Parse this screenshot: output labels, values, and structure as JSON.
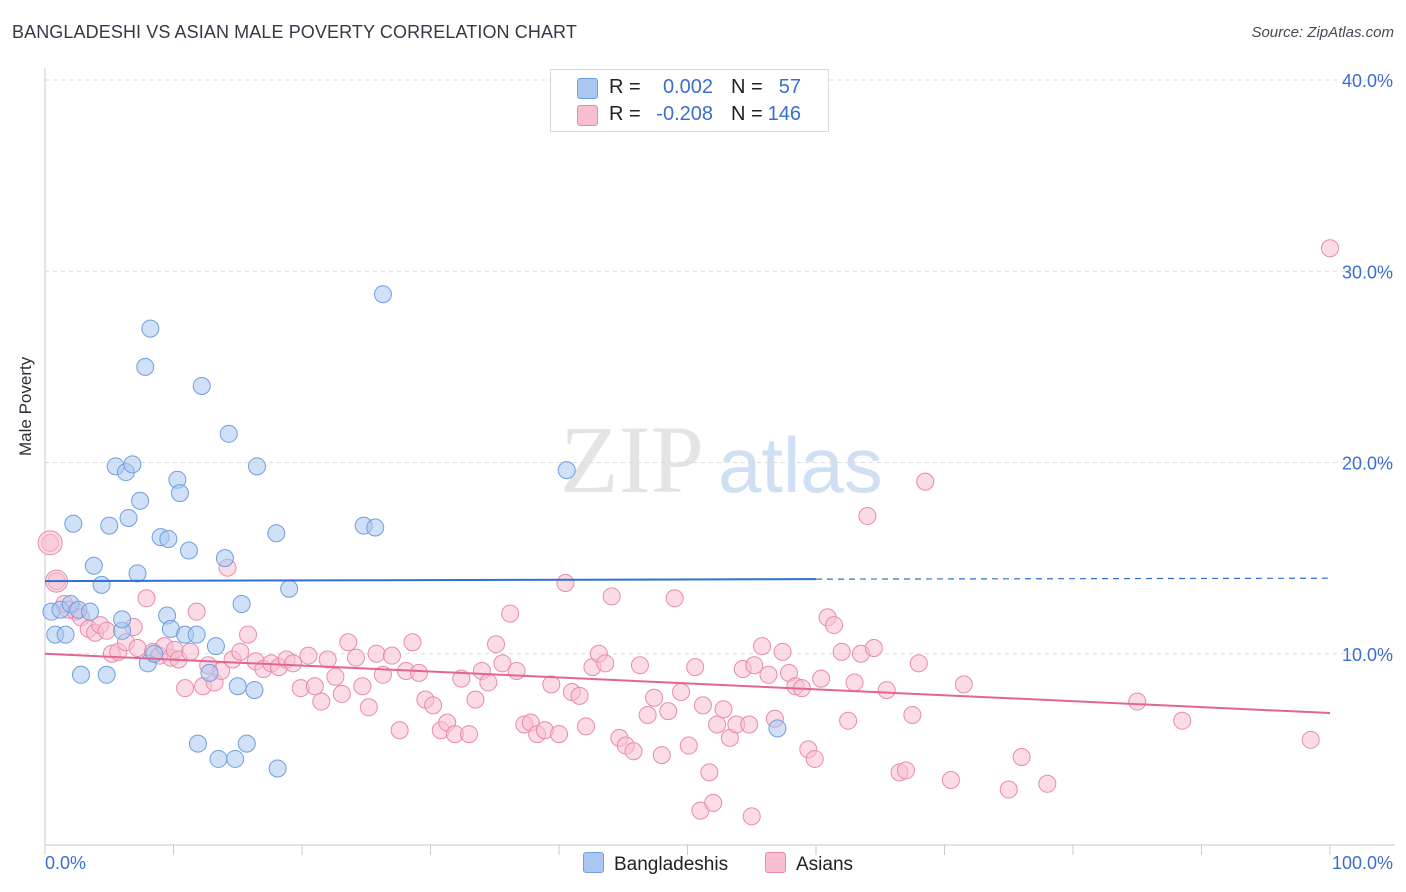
{
  "title": "BANGLADESHI VS ASIAN MALE POVERTY CORRELATION CHART",
  "source": "Source: ZipAtlas.com",
  "watermark": {
    "zip": "ZIP",
    "atlas": "atlas"
  },
  "colors": {
    "blue_fill": "#a9c7f0",
    "blue_stroke": "#6f9fe0",
    "blue_line": "#2e6fd1",
    "pink_fill": "#f7bfd1",
    "pink_stroke": "#e98aab",
    "pink_line": "#e2658f",
    "axis_text": "#3a6fd0"
  },
  "legend": {
    "rows": [
      {
        "r_label": "R =",
        "r_value": "0.002",
        "n_label": "N =",
        "n_value": "57",
        "color": "#a9c7f0",
        "stroke": "#6f9fe0"
      },
      {
        "r_label": "R =",
        "r_value": "-0.208",
        "n_label": "N =",
        "n_value": "146",
        "color": "#f7bfd1",
        "stroke": "#e98aab"
      }
    ]
  },
  "bottom_legend": [
    {
      "label": "Bangladeshis",
      "color": "#a9c7f0",
      "stroke": "#6f9fe0"
    },
    {
      "label": "Asians",
      "color": "#f7bfd1",
      "stroke": "#e98aab"
    }
  ],
  "chart_data": {
    "type": "scatter",
    "title": "BANGLADESHI VS ASIAN MALE POVERTY CORRELATION CHART",
    "xlabel": "",
    "ylabel": "Male Poverty",
    "xlim": [
      0,
      100
    ],
    "ylim": [
      0,
      40
    ],
    "x_tick_labels": [
      "0.0%",
      "100.0%"
    ],
    "y_ticks": [
      10,
      20,
      30,
      40
    ],
    "y_tick_labels": [
      "10.0%",
      "20.0%",
      "30.0%",
      "40.0%"
    ],
    "grid": "horizontal dashed",
    "legend_position": "top-center",
    "series": [
      {
        "name": "Bangladeshis",
        "r": 0.002,
        "n": 57,
        "trend": {
          "x0": 0,
          "y0": 13.8,
          "x1": 60,
          "y1": 13.9,
          "dashed_to_x": 100,
          "dashed_y1": 13.95
        },
        "points": [
          [
            0.5,
            12.2
          ],
          [
            0.8,
            11.0
          ],
          [
            1.2,
            12.3
          ],
          [
            1.6,
            11.0
          ],
          [
            2.0,
            12.6
          ],
          [
            2.2,
            16.8
          ],
          [
            2.6,
            12.3
          ],
          [
            2.8,
            8.9
          ],
          [
            3.5,
            12.2
          ],
          [
            3.8,
            14.6
          ],
          [
            4.4,
            13.6
          ],
          [
            4.8,
            8.9
          ],
          [
            5.0,
            16.7
          ],
          [
            5.5,
            19.8
          ],
          [
            6.0,
            11.2
          ],
          [
            6.0,
            11.8
          ],
          [
            6.3,
            19.5
          ],
          [
            6.5,
            17.1
          ],
          [
            6.8,
            19.9
          ],
          [
            7.2,
            14.2
          ],
          [
            7.4,
            18.0
          ],
          [
            7.8,
            25.0
          ],
          [
            8.0,
            9.5
          ],
          [
            8.2,
            27.0
          ],
          [
            8.5,
            10.0
          ],
          [
            9.0,
            16.1
          ],
          [
            9.5,
            12.0
          ],
          [
            9.6,
            16.0
          ],
          [
            9.8,
            11.3
          ],
          [
            10.3,
            19.1
          ],
          [
            10.5,
            18.4
          ],
          [
            10.9,
            11.0
          ],
          [
            11.2,
            15.4
          ],
          [
            11.8,
            11.0
          ],
          [
            11.9,
            5.3
          ],
          [
            12.2,
            24.0
          ],
          [
            12.8,
            9.0
          ],
          [
            13.3,
            10.4
          ],
          [
            13.5,
            4.5
          ],
          [
            14.0,
            15.0
          ],
          [
            14.3,
            21.5
          ],
          [
            14.8,
            4.5
          ],
          [
            15.0,
            8.3
          ],
          [
            15.3,
            12.6
          ],
          [
            15.7,
            5.3
          ],
          [
            16.3,
            8.1
          ],
          [
            16.5,
            19.8
          ],
          [
            18.0,
            16.3
          ],
          [
            18.1,
            4.0
          ],
          [
            19.0,
            13.4
          ],
          [
            24.8,
            16.7
          ],
          [
            25.7,
            16.6
          ],
          [
            26.3,
            28.8
          ],
          [
            40.6,
            19.6
          ],
          [
            57.0,
            6.1
          ]
        ]
      },
      {
        "name": "Asians",
        "r": -0.208,
        "n": 146,
        "trend": {
          "x0": 0,
          "y0": 10.0,
          "x1": 100,
          "y1": 6.9
        },
        "points": [
          [
            0.4,
            15.8
          ],
          [
            0.9,
            13.8
          ],
          [
            1.5,
            12.6
          ],
          [
            1.8,
            12.3
          ],
          [
            2.4,
            12.2
          ],
          [
            2.8,
            11.9
          ],
          [
            3.4,
            11.3
          ],
          [
            3.9,
            11.1
          ],
          [
            4.3,
            11.5
          ],
          [
            4.8,
            11.2
          ],
          [
            5.2,
            10.0
          ],
          [
            5.7,
            10.1
          ],
          [
            6.3,
            10.6
          ],
          [
            6.9,
            11.4
          ],
          [
            7.2,
            10.3
          ],
          [
            7.9,
            12.9
          ],
          [
            8.4,
            10.1
          ],
          [
            8.9,
            9.9
          ],
          [
            9.3,
            10.4
          ],
          [
            9.8,
            9.8
          ],
          [
            10.1,
            10.2
          ],
          [
            10.4,
            9.7
          ],
          [
            10.9,
            8.2
          ],
          [
            11.3,
            10.1
          ],
          [
            11.8,
            12.2
          ],
          [
            12.3,
            8.3
          ],
          [
            12.7,
            9.4
          ],
          [
            13.2,
            8.5
          ],
          [
            13.7,
            9.1
          ],
          [
            14.2,
            14.5
          ],
          [
            14.6,
            9.7
          ],
          [
            15.2,
            10.1
          ],
          [
            15.8,
            11.0
          ],
          [
            16.4,
            9.6
          ],
          [
            17.0,
            9.2
          ],
          [
            17.6,
            9.5
          ],
          [
            18.2,
            9.3
          ],
          [
            18.8,
            9.7
          ],
          [
            19.3,
            9.5
          ],
          [
            19.9,
            8.2
          ],
          [
            20.5,
            9.9
          ],
          [
            21.0,
            8.3
          ],
          [
            21.5,
            7.5
          ],
          [
            22.0,
            9.7
          ],
          [
            22.6,
            8.8
          ],
          [
            23.1,
            7.9
          ],
          [
            23.6,
            10.6
          ],
          [
            24.2,
            9.8
          ],
          [
            24.7,
            8.3
          ],
          [
            25.2,
            7.2
          ],
          [
            25.8,
            10.0
          ],
          [
            26.3,
            8.9
          ],
          [
            27.0,
            9.9
          ],
          [
            27.6,
            6.0
          ],
          [
            28.1,
            9.1
          ],
          [
            28.6,
            10.6
          ],
          [
            29.1,
            9.0
          ],
          [
            29.6,
            7.6
          ],
          [
            30.2,
            7.3
          ],
          [
            30.8,
            6.0
          ],
          [
            31.3,
            6.4
          ],
          [
            31.9,
            5.8
          ],
          [
            32.4,
            8.7
          ],
          [
            33.0,
            5.8
          ],
          [
            33.5,
            7.6
          ],
          [
            34.0,
            9.1
          ],
          [
            34.5,
            8.5
          ],
          [
            35.1,
            10.5
          ],
          [
            35.6,
            9.5
          ],
          [
            36.2,
            12.1
          ],
          [
            36.7,
            9.1
          ],
          [
            37.3,
            6.3
          ],
          [
            37.8,
            6.4
          ],
          [
            38.3,
            5.8
          ],
          [
            38.9,
            6.0
          ],
          [
            39.4,
            8.4
          ],
          [
            40.0,
            5.8
          ],
          [
            40.5,
            13.7
          ],
          [
            41.0,
            8.0
          ],
          [
            41.6,
            7.8
          ],
          [
            42.1,
            6.2
          ],
          [
            42.6,
            9.3
          ],
          [
            43.1,
            10.0
          ],
          [
            43.6,
            9.5
          ],
          [
            44.1,
            13.0
          ],
          [
            44.7,
            5.6
          ],
          [
            45.2,
            5.2
          ],
          [
            45.8,
            4.9
          ],
          [
            46.3,
            9.4
          ],
          [
            46.9,
            6.8
          ],
          [
            47.4,
            7.7
          ],
          [
            48.0,
            4.7
          ],
          [
            48.5,
            7.0
          ],
          [
            49.0,
            12.9
          ],
          [
            49.5,
            8.0
          ],
          [
            50.1,
            5.2
          ],
          [
            50.6,
            9.3
          ],
          [
            51.2,
            7.3
          ],
          [
            51.7,
            3.8
          ],
          [
            52.3,
            6.3
          ],
          [
            52.8,
            7.1
          ],
          [
            53.3,
            5.6
          ],
          [
            53.8,
            6.3
          ],
          [
            54.3,
            9.2
          ],
          [
            54.8,
            6.3
          ],
          [
            55.2,
            9.4
          ],
          [
            55.8,
            10.4
          ],
          [
            56.3,
            8.9
          ],
          [
            56.8,
            6.6
          ],
          [
            57.4,
            10.1
          ],
          [
            57.9,
            9.0
          ],
          [
            58.4,
            8.3
          ],
          [
            58.9,
            8.2
          ],
          [
            59.4,
            5.0
          ],
          [
            59.9,
            4.5
          ],
          [
            60.4,
            8.7
          ],
          [
            60.9,
            11.9
          ],
          [
            61.4,
            11.5
          ],
          [
            62.0,
            10.1
          ],
          [
            62.5,
            6.5
          ],
          [
            63.0,
            8.5
          ],
          [
            63.5,
            10.0
          ],
          [
            64.0,
            17.2
          ],
          [
            64.5,
            10.3
          ],
          [
            65.5,
            8.1
          ],
          [
            66.5,
            3.8
          ],
          [
            67.0,
            3.9
          ],
          [
            67.5,
            6.8
          ],
          [
            68.0,
            9.5
          ],
          [
            68.5,
            19.0
          ],
          [
            70.5,
            3.4
          ],
          [
            71.5,
            8.4
          ],
          [
            75.0,
            2.9
          ],
          [
            76.0,
            4.6
          ],
          [
            78.0,
            3.2
          ],
          [
            85.0,
            7.5
          ],
          [
            88.5,
            6.5
          ],
          [
            98.5,
            5.5
          ],
          [
            100.0,
            31.2
          ],
          [
            51.0,
            1.8
          ],
          [
            55.0,
            1.5
          ],
          [
            52.0,
            2.2
          ]
        ]
      }
    ]
  }
}
